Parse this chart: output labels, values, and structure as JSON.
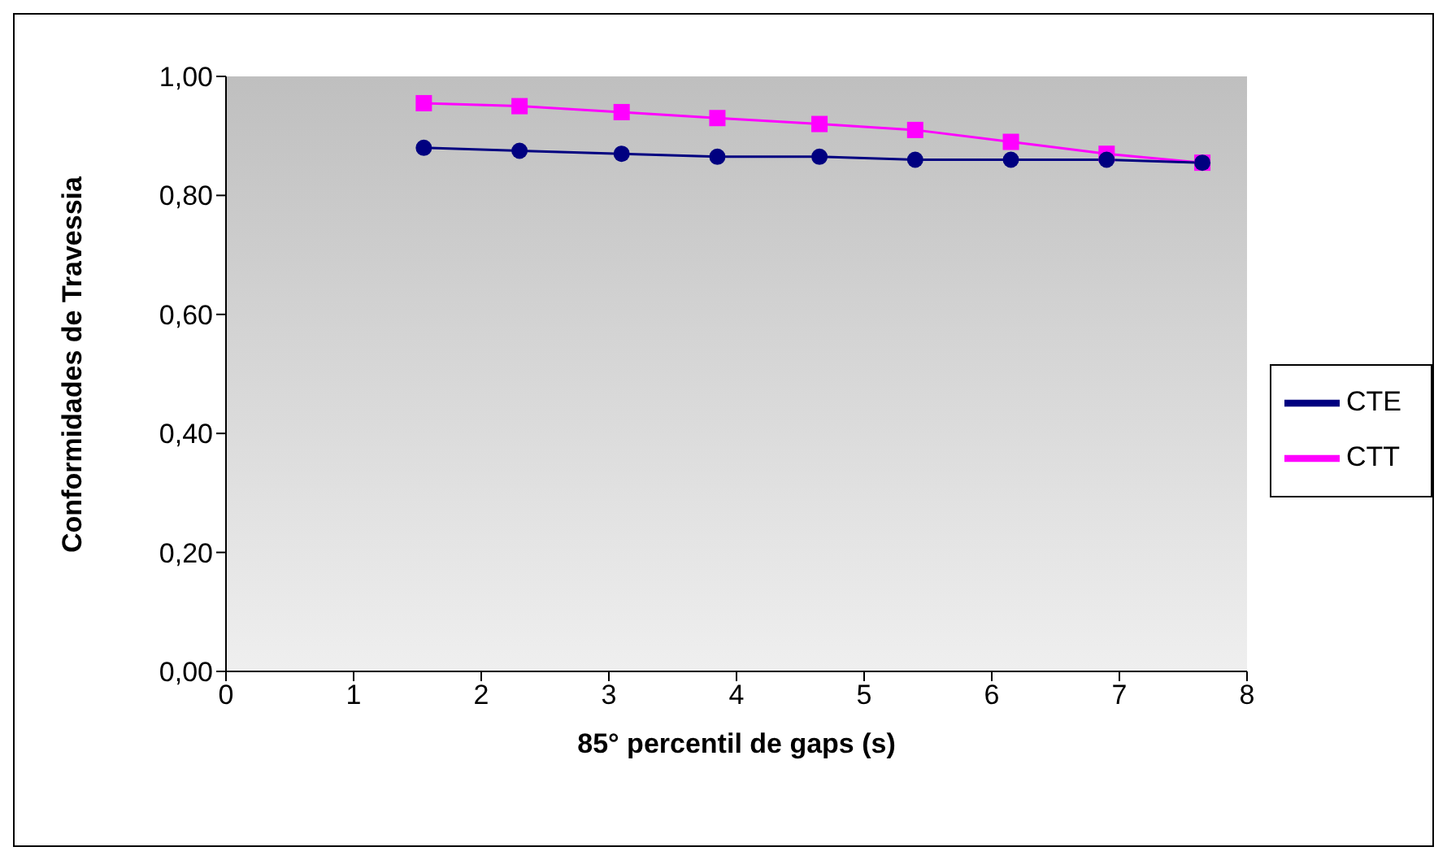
{
  "chart_data": {
    "type": "line",
    "xlabel": "85° percentil de gaps (s)",
    "ylabel": "Conformidades de Travessia",
    "x": [
      1.55,
      2.3,
      3.1,
      3.85,
      4.65,
      5.4,
      6.15,
      6.9,
      7.65
    ],
    "series": [
      {
        "name": "CTE",
        "color": "#000080",
        "marker": "circle",
        "values": [
          0.88,
          0.875,
          0.87,
          0.865,
          0.865,
          0.86,
          0.86,
          0.86,
          0.855
        ]
      },
      {
        "name": "CTT",
        "color": "#ff00ff",
        "marker": "square",
        "values": [
          0.955,
          0.95,
          0.94,
          0.93,
          0.92,
          0.91,
          0.89,
          0.87,
          0.855
        ]
      }
    ],
    "xlim": [
      0,
      8
    ],
    "xticks": [
      0,
      1,
      2,
      3,
      4,
      5,
      6,
      7,
      8
    ],
    "ylim": [
      0,
      1
    ],
    "yticks": [
      {
        "value": 0,
        "label": "0,00"
      },
      {
        "value": 0.2,
        "label": "0,20"
      },
      {
        "value": 0.4,
        "label": "0,40"
      },
      {
        "value": 0.6,
        "label": "0,60"
      },
      {
        "value": 0.8,
        "label": "0,80"
      },
      {
        "value": 1,
        "label": "1,00"
      }
    ],
    "legend": "right",
    "grid": false
  }
}
